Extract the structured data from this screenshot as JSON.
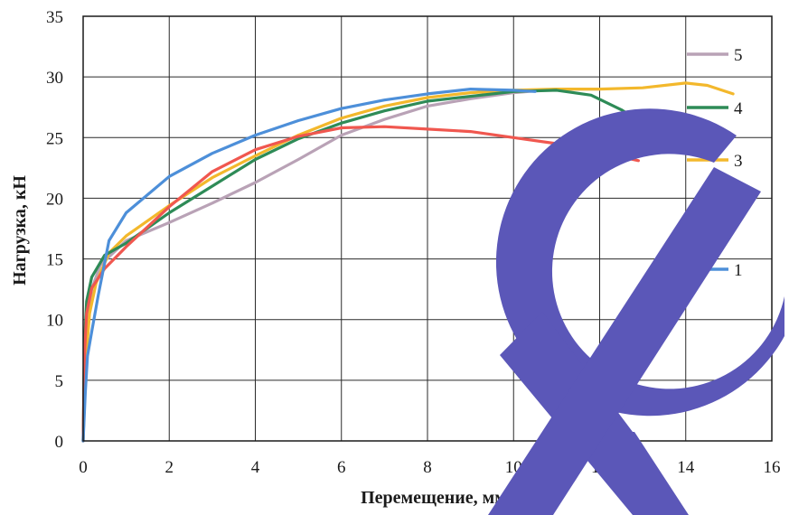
{
  "chart_data": {
    "type": "line",
    "title": "",
    "xlabel": "Перемещение, мм",
    "ylabel": "Нагрузка, кН",
    "xlim": [
      0,
      16
    ],
    "ylim": [
      0,
      35
    ],
    "xticks": [
      0,
      2,
      4,
      6,
      8,
      10,
      12,
      14,
      16
    ],
    "yticks": [
      0,
      5,
      10,
      15,
      20,
      25,
      30,
      35
    ],
    "grid": true,
    "legend_placement": "right",
    "series": [
      {
        "name": "5",
        "color": "#b9a2b6",
        "points": [
          [
            0,
            0
          ],
          [
            0.05,
            6
          ],
          [
            0.1,
            10
          ],
          [
            0.2,
            12.5
          ],
          [
            0.4,
            14.5
          ],
          [
            1,
            16.5
          ],
          [
            2,
            18
          ],
          [
            3,
            19.6
          ],
          [
            4,
            21.3
          ],
          [
            5,
            23.2
          ],
          [
            6,
            25.2
          ],
          [
            7,
            26.5
          ],
          [
            8,
            27.6
          ],
          [
            9,
            28.2
          ],
          [
            10,
            28.7
          ],
          [
            11,
            29
          ],
          [
            12,
            29
          ]
        ]
      },
      {
        "name": "4",
        "color": "#2e8b57",
        "points": [
          [
            0,
            0
          ],
          [
            0.03,
            8
          ],
          [
            0.08,
            11.5
          ],
          [
            0.2,
            13.5
          ],
          [
            0.5,
            15.3
          ],
          [
            1,
            16.3
          ],
          [
            2,
            18.8
          ],
          [
            3,
            21
          ],
          [
            4,
            23.2
          ],
          [
            5,
            24.9
          ],
          [
            6,
            26.2
          ],
          [
            7,
            27.2
          ],
          [
            8,
            28
          ],
          [
            9,
            28.4
          ],
          [
            10,
            28.8
          ],
          [
            11,
            28.9
          ],
          [
            11.8,
            28.5
          ],
          [
            12.5,
            27.3
          ],
          [
            13,
            26.2
          ]
        ]
      },
      {
        "name": "3",
        "color": "#f3b82c",
        "points": [
          [
            0,
            0
          ],
          [
            0.05,
            6
          ],
          [
            0.15,
            10.5
          ],
          [
            0.3,
            13
          ],
          [
            0.6,
            15.5
          ],
          [
            1,
            16.9
          ],
          [
            2,
            19.4
          ],
          [
            3,
            21.7
          ],
          [
            4,
            23.5
          ],
          [
            5,
            25.2
          ],
          [
            6,
            26.6
          ],
          [
            7,
            27.6
          ],
          [
            8,
            28.3
          ],
          [
            9,
            28.7
          ],
          [
            10,
            28.9
          ],
          [
            11,
            29
          ],
          [
            12,
            29
          ],
          [
            13,
            29.1
          ],
          [
            14,
            29.5
          ],
          [
            14.5,
            29.3
          ],
          [
            15.1,
            28.6
          ]
        ]
      },
      {
        "name": "2",
        "color": "#f0574f",
        "points": [
          [
            0,
            0
          ],
          [
            0.03,
            7
          ],
          [
            0.08,
            10.5
          ],
          [
            0.2,
            12.6
          ],
          [
            0.5,
            14.2
          ],
          [
            1,
            16
          ],
          [
            2,
            19.3
          ],
          [
            3,
            22.2
          ],
          [
            4,
            24
          ],
          [
            5,
            25.1
          ],
          [
            6,
            25.8
          ],
          [
            7,
            25.9
          ],
          [
            8,
            25.7
          ],
          [
            9,
            25.5
          ],
          [
            10,
            25
          ],
          [
            11,
            24.5
          ],
          [
            12,
            23.8
          ],
          [
            12.9,
            23.1
          ]
        ]
      },
      {
        "name": "1",
        "color": "#4d8fd9",
        "points": [
          [
            0,
            0
          ],
          [
            0.05,
            4
          ],
          [
            0.1,
            7
          ],
          [
            0.2,
            9
          ],
          [
            0.35,
            12
          ],
          [
            0.6,
            16.5
          ],
          [
            1,
            18.8
          ],
          [
            2,
            21.8
          ],
          [
            3,
            23.7
          ],
          [
            4,
            25.2
          ],
          [
            5,
            26.4
          ],
          [
            6,
            27.4
          ],
          [
            7,
            28.1
          ],
          [
            8,
            28.6
          ],
          [
            9,
            29
          ],
          [
            10,
            28.9
          ],
          [
            10.5,
            28.8
          ]
        ]
      }
    ]
  }
}
